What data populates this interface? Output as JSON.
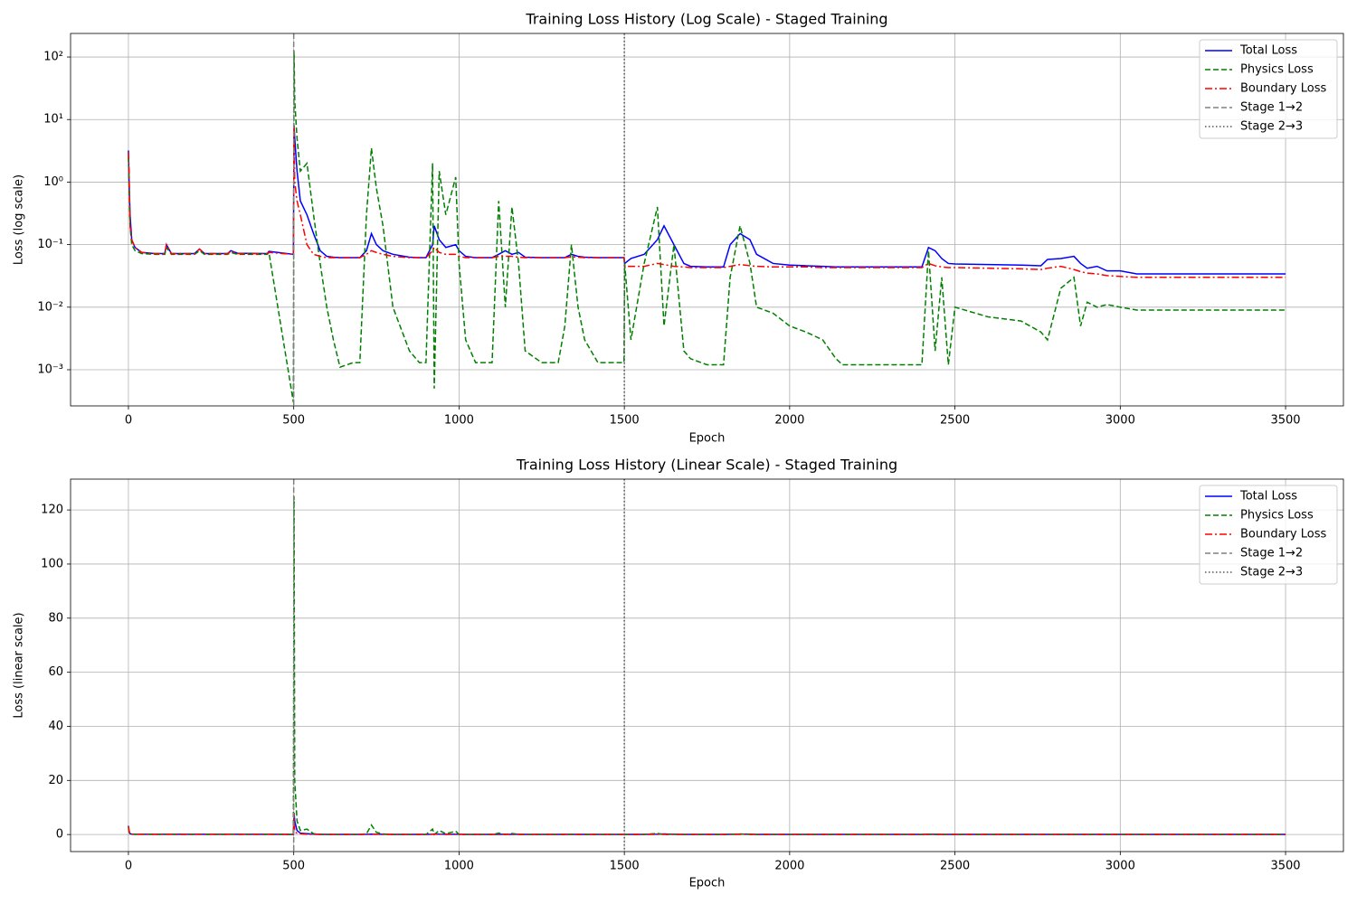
{
  "chart_data": [
    {
      "type": "line",
      "title": "Training Loss History (Log Scale) - Staged Training",
      "xlabel": "Epoch",
      "ylabel": "Loss (log scale)",
      "yscale": "log",
      "grid": true,
      "legend": "upper right",
      "xlim": [
        -175,
        3675
      ],
      "ylim": [
        0.000264,
        238
      ],
      "xticks": [
        0,
        500,
        1000,
        1500,
        2000,
        2500,
        3000,
        3500
      ],
      "yticks": [
        {
          "value": 0.001,
          "label": "10⁻³"
        },
        {
          "value": 0.01,
          "label": "10⁻²"
        },
        {
          "value": 0.1,
          "label": "10⁻¹"
        },
        {
          "value": 1,
          "label": "10⁰"
        },
        {
          "value": 10,
          "label": "10¹"
        },
        {
          "value": 100,
          "label": "10²"
        }
      ],
      "x": [
        0,
        2,
        5,
        10,
        20,
        40,
        80,
        110,
        115,
        130,
        200,
        215,
        230,
        300,
        310,
        330,
        420,
        425,
        499,
        501,
        503,
        510,
        520,
        540,
        560,
        580,
        600,
        620,
        640,
        680,
        700,
        720,
        735,
        750,
        770,
        800,
        850,
        880,
        900,
        920,
        925,
        940,
        960,
        990,
        1000,
        1020,
        1050,
        1100,
        1120,
        1140,
        1160,
        1180,
        1200,
        1250,
        1300,
        1320,
        1340,
        1360,
        1380,
        1420,
        1499,
        1501,
        1520,
        1560,
        1600,
        1620,
        1650,
        1680,
        1700,
        1750,
        1800,
        1820,
        1850,
        1880,
        1900,
        1950,
        2000,
        2050,
        2100,
        2140,
        2160,
        2200,
        2300,
        2400,
        2420,
        2440,
        2460,
        2480,
        2500,
        2600,
        2700,
        2760,
        2780,
        2820,
        2860,
        2880,
        2900,
        2930,
        2960,
        3000,
        3050,
        3100,
        3500
      ],
      "series": [
        {
          "name": "Total Loss",
          "color": "#0000ff",
          "dash": "solid",
          "values": [
            3.2,
            1.0,
            0.3,
            0.12,
            0.09,
            0.075,
            0.072,
            0.072,
            0.1,
            0.072,
            0.072,
            0.085,
            0.072,
            0.072,
            0.08,
            0.073,
            0.072,
            0.078,
            0.07,
            8,
            5,
            1.5,
            0.5,
            0.3,
            0.15,
            0.08,
            0.065,
            0.063,
            0.062,
            0.062,
            0.062,
            0.08,
            0.15,
            0.1,
            0.08,
            0.07,
            0.063,
            0.062,
            0.062,
            0.1,
            0.2,
            0.12,
            0.09,
            0.1,
            0.08,
            0.065,
            0.062,
            0.062,
            0.07,
            0.08,
            0.07,
            0.075,
            0.063,
            0.062,
            0.062,
            0.062,
            0.07,
            0.065,
            0.063,
            0.062,
            0.062,
            0.05,
            0.06,
            0.07,
            0.12,
            0.2,
            0.1,
            0.05,
            0.045,
            0.044,
            0.044,
            0.1,
            0.15,
            0.12,
            0.07,
            0.05,
            0.047,
            0.046,
            0.045,
            0.044,
            0.044,
            0.044,
            0.044,
            0.044,
            0.09,
            0.08,
            0.06,
            0.05,
            0.049,
            0.048,
            0.047,
            0.046,
            0.058,
            0.06,
            0.065,
            0.05,
            0.042,
            0.045,
            0.038,
            0.038,
            0.034,
            0.034,
            0.034
          ]
        },
        {
          "name": "Physics Loss",
          "color": "#008000",
          "dash": "dashed",
          "values": [
            2.5,
            0.8,
            0.2,
            0.1,
            0.08,
            0.072,
            0.07,
            0.07,
            0.09,
            0.07,
            0.07,
            0.08,
            0.07,
            0.07,
            0.075,
            0.07,
            0.07,
            0.075,
            0.0003,
            125,
            20,
            5,
            1.5,
            2,
            0.3,
            0.05,
            0.01,
            0.003,
            0.0011,
            0.0013,
            0.0013,
            0.3,
            3.5,
            0.8,
            0.2,
            0.01,
            0.002,
            0.0013,
            0.0013,
            2.0,
            0.0005,
            1.5,
            0.3,
            1.2,
            0.05,
            0.003,
            0.0013,
            0.0013,
            0.5,
            0.01,
            0.4,
            0.05,
            0.002,
            0.0013,
            0.0013,
            0.005,
            0.1,
            0.01,
            0.003,
            0.0013,
            0.0013,
            0.05,
            0.003,
            0.05,
            0.4,
            0.005,
            0.1,
            0.002,
            0.0015,
            0.0012,
            0.0012,
            0.03,
            0.2,
            0.05,
            0.01,
            0.008,
            0.005,
            0.004,
            0.003,
            0.0015,
            0.0012,
            0.0012,
            0.0012,
            0.0012,
            0.08,
            0.002,
            0.03,
            0.0012,
            0.01,
            0.007,
            0.006,
            0.004,
            0.003,
            0.02,
            0.03,
            0.005,
            0.012,
            0.01,
            0.011,
            0.01,
            0.009,
            0.009,
            0.009
          ]
        },
        {
          "name": "Boundary Loss",
          "color": "#ff0000",
          "dash": "dashdot",
          "values": [
            3.0,
            1.5,
            0.2,
            0.12,
            0.09,
            0.075,
            0.072,
            0.072,
            0.1,
            0.072,
            0.072,
            0.085,
            0.072,
            0.072,
            0.078,
            0.072,
            0.072,
            0.075,
            0.07,
            8,
            1.0,
            0.5,
            0.3,
            0.1,
            0.07,
            0.065,
            0.062,
            0.062,
            0.062,
            0.062,
            0.062,
            0.07,
            0.08,
            0.075,
            0.07,
            0.065,
            0.062,
            0.062,
            0.062,
            0.08,
            0.09,
            0.075,
            0.07,
            0.07,
            0.065,
            0.062,
            0.062,
            0.062,
            0.065,
            0.065,
            0.065,
            0.063,
            0.062,
            0.062,
            0.062,
            0.062,
            0.064,
            0.063,
            0.062,
            0.062,
            0.062,
            0.045,
            0.045,
            0.045,
            0.05,
            0.048,
            0.045,
            0.044,
            0.043,
            0.043,
            0.043,
            0.045,
            0.048,
            0.046,
            0.045,
            0.044,
            0.044,
            0.044,
            0.043,
            0.043,
            0.043,
            0.043,
            0.043,
            0.043,
            0.05,
            0.046,
            0.044,
            0.043,
            0.043,
            0.042,
            0.041,
            0.04,
            0.042,
            0.045,
            0.04,
            0.037,
            0.035,
            0.034,
            0.032,
            0.031,
            0.03,
            0.03,
            0.03
          ]
        }
      ],
      "vlines": [
        {
          "name": "Stage 1→2",
          "x": 500,
          "color": "#808080",
          "dash": "dashed"
        },
        {
          "name": "Stage 2→3",
          "x": 1500,
          "color": "#555555",
          "dash": "dotted"
        }
      ]
    },
    {
      "type": "line",
      "title": "Training Loss History (Linear Scale) - Staged Training",
      "xlabel": "Epoch",
      "ylabel": "Loss (linear scale)",
      "yscale": "linear",
      "grid": true,
      "legend": "upper right",
      "xlim": [
        -175,
        3675
      ],
      "ylim": [
        -6.3,
        131.4
      ],
      "xticks": [
        0,
        500,
        1000,
        1500,
        2000,
        2500,
        3000,
        3500
      ],
      "yticks": [
        0,
        20,
        40,
        60,
        80,
        100,
        120
      ],
      "x": [
        0,
        2,
        5,
        10,
        20,
        40,
        80,
        110,
        115,
        130,
        200,
        215,
        230,
        300,
        310,
        330,
        420,
        425,
        499,
        501,
        503,
        510,
        520,
        540,
        560,
        580,
        600,
        620,
        640,
        680,
        700,
        720,
        735,
        750,
        770,
        800,
        850,
        880,
        900,
        920,
        925,
        940,
        960,
        990,
        1000,
        1020,
        1050,
        1100,
        1120,
        1140,
        1160,
        1180,
        1200,
        1250,
        1300,
        1320,
        1340,
        1360,
        1380,
        1420,
        1499,
        1501,
        1520,
        1560,
        1600,
        1620,
        1650,
        1680,
        1700,
        1750,
        1800,
        1820,
        1850,
        1880,
        1900,
        1950,
        2000,
        2050,
        2100,
        2140,
        2160,
        2200,
        2300,
        2400,
        2420,
        2440,
        2460,
        2480,
        2500,
        2600,
        2700,
        2760,
        2780,
        2820,
        2860,
        2880,
        2900,
        2930,
        2960,
        3000,
        3050,
        3100,
        3500
      ],
      "series": [
        {
          "name": "Total Loss",
          "color": "#0000ff",
          "dash": "solid",
          "values": [
            3.2,
            1.0,
            0.3,
            0.12,
            0.09,
            0.075,
            0.072,
            0.072,
            0.1,
            0.072,
            0.072,
            0.085,
            0.072,
            0.072,
            0.08,
            0.073,
            0.072,
            0.078,
            0.07,
            8,
            5,
            1.5,
            0.5,
            0.3,
            0.15,
            0.08,
            0.065,
            0.063,
            0.062,
            0.062,
            0.062,
            0.08,
            0.15,
            0.1,
            0.08,
            0.07,
            0.063,
            0.062,
            0.062,
            0.1,
            0.2,
            0.12,
            0.09,
            0.1,
            0.08,
            0.065,
            0.062,
            0.062,
            0.07,
            0.08,
            0.07,
            0.075,
            0.063,
            0.062,
            0.062,
            0.062,
            0.07,
            0.065,
            0.063,
            0.062,
            0.062,
            0.05,
            0.06,
            0.07,
            0.12,
            0.2,
            0.1,
            0.05,
            0.045,
            0.044,
            0.044,
            0.1,
            0.15,
            0.12,
            0.07,
            0.05,
            0.047,
            0.046,
            0.045,
            0.044,
            0.044,
            0.044,
            0.044,
            0.044,
            0.09,
            0.08,
            0.06,
            0.05,
            0.049,
            0.048,
            0.047,
            0.046,
            0.058,
            0.06,
            0.065,
            0.05,
            0.042,
            0.045,
            0.038,
            0.038,
            0.034,
            0.034,
            0.034
          ]
        },
        {
          "name": "Physics Loss",
          "color": "#008000",
          "dash": "dashed",
          "values": [
            2.5,
            0.8,
            0.2,
            0.1,
            0.08,
            0.072,
            0.07,
            0.07,
            0.09,
            0.07,
            0.07,
            0.08,
            0.07,
            0.07,
            0.075,
            0.07,
            0.07,
            0.075,
            0.0003,
            125,
            20,
            5,
            1.5,
            2,
            0.3,
            0.05,
            0.01,
            0.003,
            0.0011,
            0.0013,
            0.0013,
            0.3,
            3.5,
            0.8,
            0.2,
            0.01,
            0.002,
            0.0013,
            0.0013,
            2.0,
            0.0005,
            1.5,
            0.3,
            1.2,
            0.05,
            0.003,
            0.0013,
            0.0013,
            0.5,
            0.01,
            0.4,
            0.05,
            0.002,
            0.0013,
            0.0013,
            0.005,
            0.1,
            0.01,
            0.003,
            0.0013,
            0.0013,
            0.05,
            0.003,
            0.05,
            0.4,
            0.005,
            0.1,
            0.002,
            0.0015,
            0.0012,
            0.0012,
            0.03,
            0.2,
            0.05,
            0.01,
            0.008,
            0.005,
            0.004,
            0.003,
            0.0015,
            0.0012,
            0.0012,
            0.0012,
            0.0012,
            0.08,
            0.002,
            0.03,
            0.0012,
            0.01,
            0.007,
            0.006,
            0.004,
            0.003,
            0.02,
            0.03,
            0.005,
            0.012,
            0.01,
            0.011,
            0.01,
            0.009,
            0.009,
            0.009
          ]
        },
        {
          "name": "Boundary Loss",
          "color": "#ff0000",
          "dash": "dashdot",
          "values": [
            3.0,
            1.5,
            0.2,
            0.12,
            0.09,
            0.075,
            0.072,
            0.072,
            0.1,
            0.072,
            0.072,
            0.085,
            0.072,
            0.072,
            0.078,
            0.072,
            0.072,
            0.075,
            0.07,
            8,
            1.0,
            0.5,
            0.3,
            0.1,
            0.07,
            0.065,
            0.062,
            0.062,
            0.062,
            0.062,
            0.062,
            0.07,
            0.08,
            0.075,
            0.07,
            0.065,
            0.062,
            0.062,
            0.062,
            0.08,
            0.09,
            0.075,
            0.07,
            0.07,
            0.065,
            0.062,
            0.062,
            0.062,
            0.065,
            0.065,
            0.065,
            0.063,
            0.062,
            0.062,
            0.062,
            0.062,
            0.064,
            0.063,
            0.062,
            0.062,
            0.062,
            0.045,
            0.045,
            0.045,
            0.05,
            0.048,
            0.045,
            0.044,
            0.043,
            0.043,
            0.043,
            0.045,
            0.048,
            0.046,
            0.045,
            0.044,
            0.044,
            0.044,
            0.043,
            0.043,
            0.043,
            0.043,
            0.043,
            0.043,
            0.05,
            0.046,
            0.044,
            0.043,
            0.043,
            0.042,
            0.041,
            0.04,
            0.042,
            0.045,
            0.04,
            0.037,
            0.035,
            0.034,
            0.032,
            0.031,
            0.03,
            0.03,
            0.03
          ]
        }
      ],
      "vlines": [
        {
          "name": "Stage 1→2",
          "x": 500,
          "color": "#808080",
          "dash": "dashed"
        },
        {
          "name": "Stage 2→3",
          "x": 1500,
          "color": "#555555",
          "dash": "dotted"
        }
      ]
    }
  ]
}
